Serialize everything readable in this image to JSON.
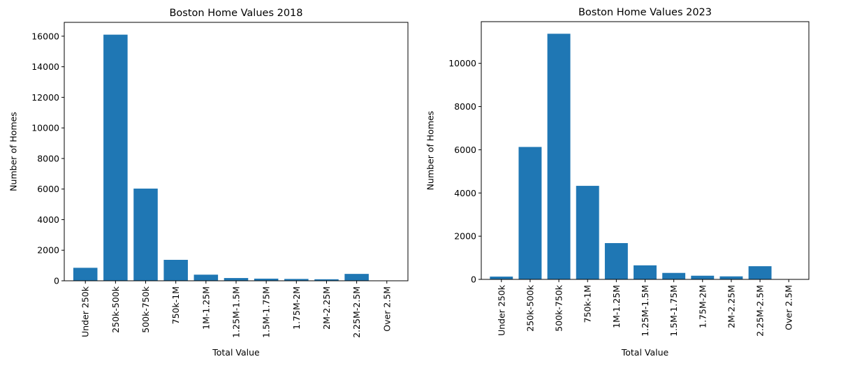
{
  "chart_data": [
    {
      "type": "bar",
      "title": "Boston Home Values 2018",
      "xlabel": "Total Value",
      "ylabel": "Number of Homes",
      "categories": [
        "Under 250k",
        "250k-500k",
        "500k-750k",
        "750k-1M",
        "1M-1.25M",
        "1.25M-1.5M",
        "1.5M-1.75M",
        "1.75M-2M",
        "2M-2.25M",
        "2.25M-2.5M",
        "Over 2.5M"
      ],
      "values": [
        850,
        16100,
        6030,
        1370,
        400,
        180,
        140,
        120,
        100,
        450,
        0
      ],
      "ylim": [
        0,
        16905
      ],
      "yticks": [
        0,
        2000,
        4000,
        6000,
        8000,
        10000,
        12000,
        14000,
        16000
      ],
      "bar_color": "#1f77b4",
      "grid": false
    },
    {
      "type": "bar",
      "title": "Boston Home Values 2023",
      "xlabel": "Total Value",
      "ylabel": "Number of Homes",
      "categories": [
        "Under 250k",
        "250k-500k",
        "500k-750k",
        "750k-1M",
        "1M-1.25M",
        "1.25M-1.5M",
        "1.5M-1.75M",
        "1.75M-2M",
        "2M-2.25M",
        "2.25M-2.5M",
        "Over 2.5M"
      ],
      "values": [
        130,
        6130,
        11370,
        4330,
        1680,
        650,
        300,
        170,
        140,
        610,
        0
      ],
      "ylim": [
        0,
        11930
      ],
      "yticks": [
        0,
        2000,
        4000,
        6000,
        8000,
        10000
      ],
      "bar_color": "#1f77b4",
      "grid": false
    }
  ]
}
